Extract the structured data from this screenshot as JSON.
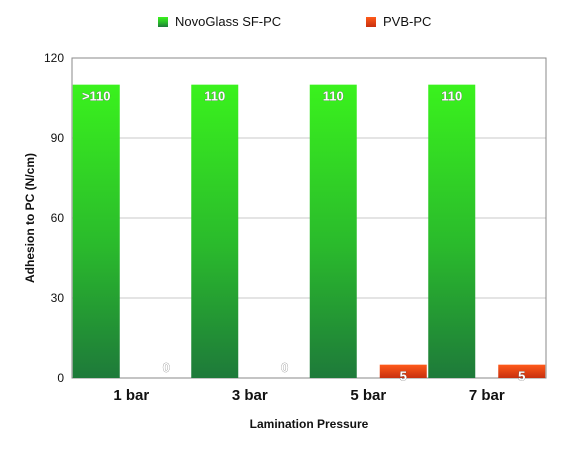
{
  "chart_data": {
    "type": "bar",
    "title": "",
    "xlabel": "Lamination Pressure",
    "ylabel": "Adhesion to PC (N/cm)",
    "ylim": [
      0,
      120
    ],
    "yticks": [
      0,
      30,
      60,
      90,
      120
    ],
    "grid": true,
    "legend_position": "top",
    "categories": [
      "1 bar",
      "3 bar",
      "5 bar",
      "7 bar"
    ],
    "series": [
      {
        "name": "NovoGlass SF-PC",
        "color": "#2fd41a",
        "values": [
          110,
          110,
          110,
          110
        ],
        "labels": [
          ">110",
          "110",
          "110",
          "110"
        ]
      },
      {
        "name": "PVB-PC",
        "color": "#e8401a",
        "values": [
          0,
          0,
          5,
          5
        ],
        "labels": [
          "0",
          "0",
          "5",
          "5"
        ]
      }
    ]
  }
}
